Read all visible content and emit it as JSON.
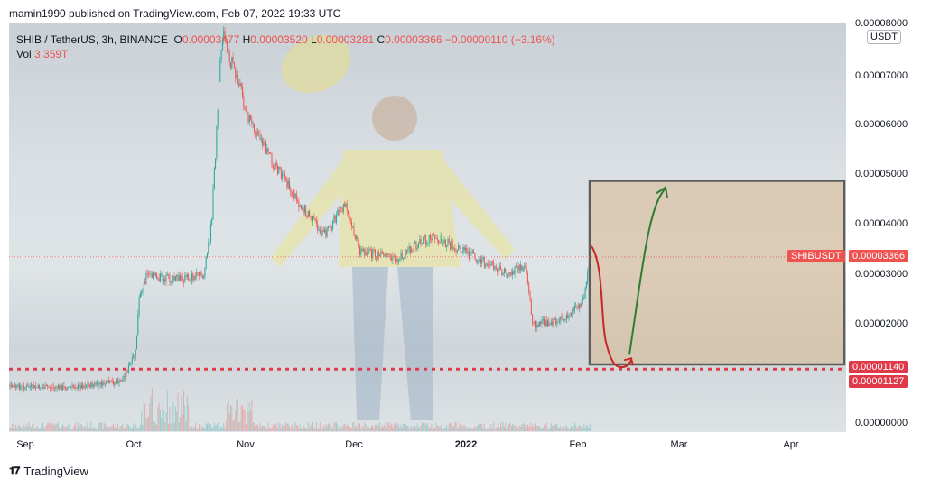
{
  "header": {
    "published": "mamin1990 published on TradingView.com, Feb 07, 2022 19:33 UTC"
  },
  "legend": {
    "symbol": "SHIB / TetherUS, 3h, BINANCE",
    "o_label": "O",
    "o_value": "0.00003477",
    "h_label": "H",
    "h_value": "0.00003520",
    "l_label": "L",
    "l_value": "0.00003281",
    "c_label": "C",
    "c_value": "0.00003366",
    "change": "−0.00000110 (−3.16%)",
    "vol_label": "Vol",
    "vol_value": "3.359T"
  },
  "yaxis": {
    "currency": "USDT",
    "ticks": [
      "0.00008000",
      "0.00007000",
      "0.00006000",
      "0.00005000",
      "0.00004000",
      "0.00003000",
      "0.00002000",
      "0.00000000"
    ]
  },
  "xaxis": {
    "ticks": [
      "Sep",
      "Oct",
      "Nov",
      "Dec",
      "2022",
      "Feb",
      "Mar",
      "Apr"
    ]
  },
  "tags": {
    "symbol_tag": "SHIBUSDT",
    "price_tag": "0.00003366",
    "support_1": "0.00001140",
    "support_2": "0.00001127"
  },
  "footer": {
    "brand": "TradingView"
  },
  "colors": {
    "up": "#26a69a",
    "down": "#ef5350",
    "box_border": "#5d5d5d",
    "box_fill": "#d8b890",
    "support": "#e03a4a"
  },
  "chart_data": {
    "type": "candlestick",
    "title": "SHIB / TetherUS, 3h, BINANCE",
    "ylabel": "USDT",
    "ylim": [
      0,
      8e-05
    ],
    "x_categories": [
      "Sep",
      "Oct",
      "Nov",
      "Dec",
      "2022",
      "Feb",
      "Mar",
      "Apr"
    ],
    "approx_close_path": [
      {
        "date": "Aug 28",
        "value": 7.5e-06
      },
      {
        "date": "Sep 15",
        "value": 7.3e-06
      },
      {
        "date": "Sep 30",
        "value": 8.5e-06
      },
      {
        "date": "Oct 04",
        "value": 1.4e-05
      },
      {
        "date": "Oct 05",
        "value": 2.5e-05
      },
      {
        "date": "Oct 07",
        "value": 3e-05
      },
      {
        "date": "Oct 15",
        "value": 2.9e-05
      },
      {
        "date": "Oct 23",
        "value": 3e-05
      },
      {
        "date": "Oct 25",
        "value": 4e-05
      },
      {
        "date": "Oct 28",
        "value": 7.9e-05
      },
      {
        "date": "Nov 05",
        "value": 6e-05
      },
      {
        "date": "Nov 15",
        "value": 4.8e-05
      },
      {
        "date": "Nov 25",
        "value": 3.8e-05
      },
      {
        "date": "Dec 01",
        "value": 4.4e-05
      },
      {
        "date": "Dec 05",
        "value": 3.5e-05
      },
      {
        "date": "Dec 15",
        "value": 3.3e-05
      },
      {
        "date": "Dec 25",
        "value": 3.8e-05
      },
      {
        "date": "Jan 05",
        "value": 3.4e-05
      },
      {
        "date": "Jan 15",
        "value": 3e-05
      },
      {
        "date": "Jan 20",
        "value": 3.2e-05
      },
      {
        "date": "Jan 22",
        "value": 2e-05
      },
      {
        "date": "Jan 30",
        "value": 2.1e-05
      },
      {
        "date": "Feb 05",
        "value": 2.5e-05
      },
      {
        "date": "Feb 07",
        "value": 3.4e-05
      }
    ],
    "last_price": 3.366e-05,
    "support_levels": [
      1.14e-05,
      1.127e-05
    ],
    "projection_box": {
      "start": "Feb 06",
      "end": "Apr 30",
      "top": 4.9e-05,
      "bottom": 1.2e-05
    }
  }
}
